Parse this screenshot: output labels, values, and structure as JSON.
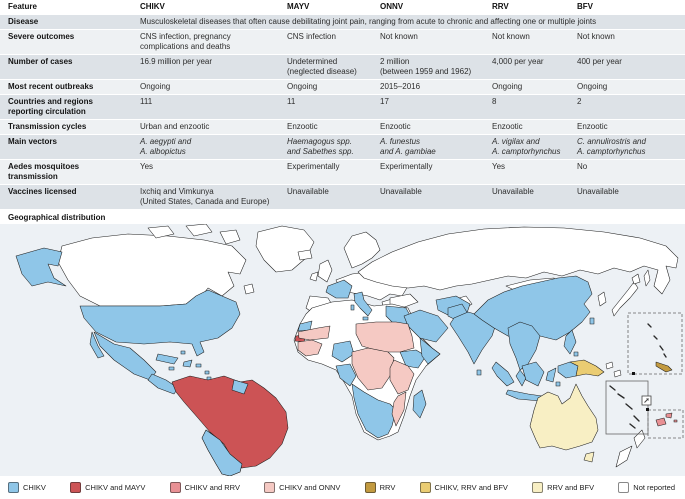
{
  "table": {
    "columns": [
      "Feature",
      "CHIKV",
      "MAYV",
      "ONNV",
      "RRV",
      "BFV"
    ],
    "rows": [
      {
        "feature": "Disease",
        "span": "Musculoskeletal diseases that often cause debilitating joint pain, ranging from acute to chronic and affecting one or multiple joints"
      },
      {
        "feature": "Severe outcomes",
        "cells": [
          "CNS infection, pregnancy\ncomplications and deaths",
          "CNS infection",
          "Not known",
          "Not known",
          "Not known"
        ]
      },
      {
        "feature": "Number of cases",
        "cells": [
          "16.9 million per year",
          "Undetermined\n(neglected disease)",
          "2 million\n(between 1959 and 1962)",
          "4,000 per year",
          "400 per year"
        ]
      },
      {
        "feature": "Most recent outbreaks",
        "cells": [
          "Ongoing",
          "Ongoing",
          "2015–2016",
          "Ongoing",
          "Ongoing"
        ]
      },
      {
        "feature": "Countries and regions\nreporting circulation",
        "cells": [
          "111",
          "11",
          "17",
          "8",
          "2"
        ]
      },
      {
        "feature": "Transmission cycles",
        "cells": [
          "Urban and enzootic",
          "Enzootic",
          "Enzootic",
          "Enzootic",
          "Enzootic"
        ]
      },
      {
        "feature": "Main vectors",
        "cells": [
          "A. aegypti and\nA. albopictus",
          "Haemagogus spp.\nand Sabethes spp.",
          "A. funestus\nand A. gambiae",
          "A. vigilax and\nA. camptorhynchus",
          "C. annulirostris and\nA. camptorhynchus"
        ]
      },
      {
        "feature": "Aedes mosquitoes\ntransmission",
        "cells": [
          "Yes",
          "Experimentally",
          "Experimentally",
          "Yes",
          "No"
        ]
      },
      {
        "feature": "Vaccines licensed",
        "cells": [
          "Ixchiq and Vimkunya\n(United States, Canada and Europe)",
          "Unavailable",
          "Unavailable",
          "Unavailable",
          "Unavailable"
        ]
      }
    ]
  },
  "map": {
    "title": "Geographical distribution",
    "ocean_color": "#EDF1F5"
  },
  "legend": {
    "items": [
      {
        "key": "chikv",
        "label": "CHIKV",
        "color": "#8FC6E8"
      },
      {
        "key": "chikv_mayv",
        "label": "CHIKV and MAYV",
        "color": "#CC5355"
      },
      {
        "key": "chikv_rrv",
        "label": "CHIKV and RRV",
        "color": "#E89094"
      },
      {
        "key": "chikv_onnv",
        "label": "CHIKV and ONNV",
        "color": "#F5C9C3"
      },
      {
        "key": "rrv",
        "label": "RRV",
        "color": "#C29A40"
      },
      {
        "key": "chikv_rrv_bfv",
        "label": "CHIKV, RRV and BFV",
        "color": "#EACC72"
      },
      {
        "key": "rrv_bfv",
        "label": "RRV and BFV",
        "color": "#F8EFC4"
      },
      {
        "key": "not_reported",
        "label": "Not reported",
        "color": "#FFFFFF"
      }
    ]
  }
}
